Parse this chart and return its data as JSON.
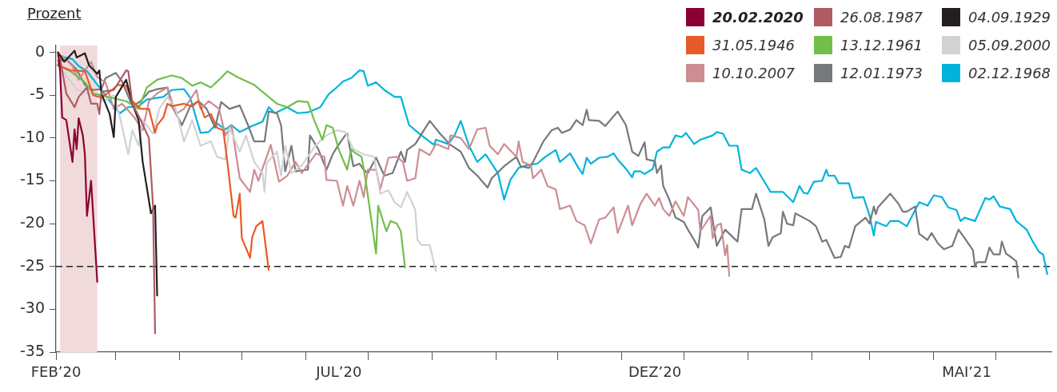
{
  "chart_data": {
    "type": "line",
    "ylabel": "Prozent",
    "legend": "top right",
    "grid": false,
    "marker": "none",
    "xlim": [
      "2020-02-15",
      "2021-06-11"
    ],
    "xticks": [
      {
        "value": "2020-02-15",
        "label": "FEB’20"
      },
      {
        "value": "2020-03-15",
        "label": null
      },
      {
        "value": "2020-04-15",
        "label": null
      },
      {
        "value": "2020-05-15",
        "label": null
      },
      {
        "value": "2020-06-15",
        "label": null
      },
      {
        "value": "2020-07-01",
        "label": "JUL’20"
      },
      {
        "value": "2020-07-15",
        "label": null
      },
      {
        "value": "2020-08-15",
        "label": null
      },
      {
        "value": "2020-09-15",
        "label": null
      },
      {
        "value": "2020-10-15",
        "label": null
      },
      {
        "value": "2020-11-15",
        "label": null
      },
      {
        "value": "2020-12-01",
        "label": "DEZ’20"
      },
      {
        "value": "2020-12-15",
        "label": null
      },
      {
        "value": "2021-01-15",
        "label": null
      },
      {
        "value": "2021-02-15",
        "label": null
      },
      {
        "value": "2021-03-15",
        "label": null
      },
      {
        "value": "2021-04-15",
        "label": null
      },
      {
        "value": "2021-05-01",
        "label": "MAI’21"
      },
      {
        "value": "2021-05-15",
        "label": null
      }
    ],
    "ylim": [
      -35,
      0.8
    ],
    "yticks": [
      0,
      -5,
      -10,
      -15,
      -20,
      -25,
      -30,
      -35
    ],
    "ref_lines": [
      {
        "axis": "y",
        "value": -25,
        "color": "#222222",
        "line_style": "dashed"
      }
    ],
    "bands": [
      {
        "axis": "x",
        "from": "2020-02-17",
        "to": "2020-03-06",
        "color": "#f0dada"
      }
    ],
    "series": [
      {
        "name": "20.02.2020",
        "color": "#8b0033",
        "x": [
          "2020-02-16",
          "2020-02-17",
          "2020-02-18",
          "2020-02-20",
          "2020-02-23",
          "2020-02-24",
          "2020-02-25",
          "2020-02-26",
          "2020-02-28",
          "2020-02-29",
          "2020-03-01",
          "2020-03-03",
          "2020-03-06"
        ],
        "values": [
          0,
          -2.2,
          -7.6,
          -7.9,
          -12.8,
          -9.0,
          -11.3,
          -7.7,
          -9.7,
          -11.9,
          -19.1,
          -15.0,
          -26.8
        ]
      },
      {
        "name": "26.08.1987",
        "color": "#b05a62",
        "x": [
          "2020-02-16",
          "2020-02-17",
          "2020-02-20",
          "2020-02-24",
          "2020-02-26",
          "2020-03-01",
          "2020-03-03",
          "2020-03-06",
          "2020-03-07",
          "2020-03-08",
          "2020-03-14",
          "2020-03-20",
          "2020-03-21",
          "2020-03-23",
          "2020-03-27",
          "2020-03-31",
          "2020-04-02",
          "2020-04-03"
        ],
        "values": [
          -1.5,
          -0.8,
          -4.8,
          -6.4,
          -5.2,
          -4.1,
          -6.0,
          -6.0,
          -7.2,
          -4.6,
          -4.4,
          -2.1,
          -2.2,
          -6.0,
          -7.9,
          -10.0,
          -17.9,
          -32.8
        ]
      },
      {
        "name": "04.09.1929",
        "color": "#231f20",
        "x": [
          "2020-02-16",
          "2020-02-19",
          "2020-02-24",
          "2020-02-25",
          "2020-02-29",
          "2020-03-02",
          "2020-03-06",
          "2020-03-07",
          "2020-03-08",
          "2020-03-12",
          "2020-03-14",
          "2020-03-15",
          "2020-03-20",
          "2020-03-23",
          "2020-03-26",
          "2020-03-28",
          "2020-04-01",
          "2020-04-03",
          "2020-04-04"
        ],
        "values": [
          0,
          -1.1,
          0.2,
          -0.6,
          -0.1,
          -1.5,
          -2.5,
          -2.1,
          -4.8,
          -7.2,
          -9.9,
          -5.2,
          -3.2,
          -6.0,
          -7.9,
          -12.8,
          -18.8,
          -17.9,
          -28.4
        ]
      },
      {
        "name": "31.05.1946",
        "color": "#e85a27",
        "x": [
          "2020-02-16",
          "2020-02-22",
          "2020-02-29",
          "2020-03-04",
          "2020-03-08",
          "2020-03-13",
          "2020-03-16",
          "2020-03-20",
          "2020-03-23",
          "2020-03-27",
          "2020-03-31",
          "2020-04-03",
          "2020-04-04",
          "2020-04-07",
          "2020-04-09",
          "2020-04-11",
          "2020-04-17",
          "2020-04-21",
          "2020-04-24",
          "2020-04-27",
          "2020-04-30",
          "2020-05-03",
          "2020-05-06",
          "2020-05-08",
          "2020-05-11",
          "2020-05-12",
          "2020-05-14",
          "2020-05-15",
          "2020-05-19",
          "2020-05-20",
          "2020-05-22",
          "2020-05-25",
          "2020-05-28"
        ],
        "values": [
          -1.5,
          -2.1,
          -2.2,
          -5.0,
          -5.3,
          -4.4,
          -3.8,
          -3.9,
          -5.7,
          -6.6,
          -6.6,
          -9.4,
          -8.5,
          -7.6,
          -6.0,
          -6.3,
          -6.0,
          -6.3,
          -5.7,
          -7.6,
          -7.2,
          -8.8,
          -9.1,
          -12.8,
          -19.1,
          -19.3,
          -16.5,
          -21.7,
          -24.0,
          -21.6,
          -20.3,
          -19.7,
          -25.4
        ]
      },
      {
        "name": "13.12.1961",
        "color": "#72be4b",
        "x": [
          "2020-02-16",
          "2020-02-22",
          "2020-02-29",
          "2020-03-04",
          "2020-03-20",
          "2020-03-26",
          "2020-03-30",
          "2020-04-04",
          "2020-04-11",
          "2020-04-16",
          "2020-04-21",
          "2020-04-25",
          "2020-04-30",
          "2020-05-04",
          "2020-05-08",
          "2020-05-13",
          "2020-05-21",
          "2020-05-26",
          "2020-05-28",
          "2020-06-01",
          "2020-06-06",
          "2020-06-11",
          "2020-06-16",
          "2020-06-19",
          "2020-06-23",
          "2020-06-25",
          "2020-06-28",
          "2020-07-01",
          "2020-07-05",
          "2020-07-07",
          "2020-07-08",
          "2020-07-12",
          "2020-07-14",
          "2020-07-19",
          "2020-07-20",
          "2020-07-24",
          "2020-07-26",
          "2020-07-29",
          "2020-07-31",
          "2020-08-02"
        ],
        "values": [
          -1.5,
          -2.2,
          -3.5,
          -4.8,
          -5.7,
          -6.6,
          -4.1,
          -3.2,
          -2.7,
          -3.0,
          -3.9,
          -3.5,
          -4.1,
          -3.2,
          -2.2,
          -2.9,
          -3.8,
          -4.8,
          -5.2,
          -6.0,
          -6.4,
          -5.7,
          -5.8,
          -7.9,
          -10.2,
          -8.5,
          -8.8,
          -11.4,
          -13.7,
          -11.3,
          -11.6,
          -12.2,
          -15.0,
          -23.5,
          -17.9,
          -20.9,
          -19.7,
          -20.0,
          -20.9,
          -25.1
        ]
      },
      {
        "name": "05.09.2000",
        "color": "#d1d2d4",
        "x": [
          "2020-02-16",
          "2020-02-25",
          "2020-03-01",
          "2020-03-06",
          "2020-03-09",
          "2020-03-14",
          "2020-03-17",
          "2020-03-21",
          "2020-03-23",
          "2020-03-26",
          "2020-03-28",
          "2020-04-02",
          "2020-04-05",
          "2020-04-09",
          "2020-04-13",
          "2020-04-17",
          "2020-04-21",
          "2020-04-25",
          "2020-04-30",
          "2020-05-03",
          "2020-05-07",
          "2020-05-09",
          "2020-05-14",
          "2020-05-17",
          "2020-05-21",
          "2020-05-25",
          "2020-05-26",
          "2020-05-27",
          "2020-06-01",
          "2020-06-03",
          "2020-06-05",
          "2020-06-08",
          "2020-06-13",
          "2020-06-20",
          "2020-06-25",
          "2020-06-30",
          "2020-07-04",
          "2020-07-08",
          "2020-07-13",
          "2020-07-18",
          "2020-07-21",
          "2020-07-25",
          "2020-07-28",
          "2020-07-31",
          "2020-08-03",
          "2020-08-07",
          "2020-08-08",
          "2020-08-10",
          "2020-08-14",
          "2020-08-17"
        ],
        "values": [
          -1.5,
          -4.3,
          -4.8,
          -4.8,
          -5.7,
          -5.0,
          -7.6,
          -11.9,
          -9.1,
          -10.9,
          -7.9,
          -9.5,
          -6.6,
          -5.2,
          -6.6,
          -10.4,
          -7.9,
          -10.9,
          -10.4,
          -12.2,
          -12.5,
          -8.8,
          -11.6,
          -9.7,
          -12.8,
          -14.1,
          -16.3,
          -12.9,
          -11.6,
          -14.4,
          -10.9,
          -14.1,
          -13.2,
          -10.8,
          -9.7,
          -9.1,
          -9.3,
          -11.3,
          -11.9,
          -12.2,
          -16.5,
          -16.1,
          -17.5,
          -18.1,
          -16.3,
          -18.4,
          -21.9,
          -22.5,
          -22.5,
          -25.6
        ]
      },
      {
        "name": "10.10.2007",
        "color": "#cc8e92",
        "x": [
          "2020-02-16",
          "2020-02-18",
          "2020-02-23",
          "2020-02-26",
          "2020-03-03",
          "2020-03-06",
          "2020-03-10",
          "2020-03-14",
          "2020-03-18",
          "2020-03-24",
          "2020-03-28",
          "2020-03-31",
          "2020-04-04",
          "2020-04-09",
          "2020-04-13",
          "2020-04-17",
          "2020-04-23",
          "2020-04-25",
          "2020-04-29",
          "2020-05-04",
          "2020-05-07",
          "2020-05-10",
          "2020-05-14",
          "2020-05-19",
          "2020-05-21",
          "2020-05-23",
          "2020-05-29",
          "2020-06-02",
          "2020-06-06",
          "2020-06-10",
          "2020-06-13",
          "2020-06-20",
          "2020-06-24",
          "2020-06-25",
          "2020-06-30",
          "2020-07-03",
          "2020-07-05",
          "2020-07-08",
          "2020-07-11",
          "2020-07-13",
          "2020-07-15",
          "2020-07-19",
          "2020-07-21",
          "2020-07-25",
          "2020-07-29",
          "2020-08-01",
          "2020-08-03",
          "2020-08-07",
          "2020-08-09",
          "2020-08-14",
          "2020-08-17",
          "2020-08-23",
          "2020-08-24",
          "2020-08-29",
          "2020-09-02",
          "2020-09-06",
          "2020-09-10",
          "2020-09-12",
          "2020-09-16",
          "2020-09-19",
          "2020-09-25",
          "2020-09-26",
          "2020-09-28",
          "2020-10-02",
          "2020-10-03",
          "2020-10-07",
          "2020-10-10",
          "2020-10-14",
          "2020-10-16",
          "2020-10-21",
          "2020-10-24",
          "2020-10-28",
          "2020-10-31",
          "2020-11-04",
          "2020-11-07",
          "2020-11-11",
          "2020-11-13",
          "2020-11-18",
          "2020-11-20",
          "2020-11-24",
          "2020-11-27",
          "2020-12-01",
          "2020-12-03",
          "2020-12-05",
          "2020-12-08",
          "2020-12-11",
          "2020-12-15",
          "2020-12-17",
          "2020-12-22",
          "2020-12-23",
          "2020-12-28",
          "2020-12-29",
          "2020-12-31",
          "2021-01-02",
          "2021-01-04",
          "2021-01-05",
          "2021-01-06"
        ],
        "values": [
          -1.0,
          -0.4,
          -1.6,
          -3.2,
          -1.1,
          -2.9,
          -3.5,
          -6.6,
          -6.0,
          -7.6,
          -9.1,
          -5.7,
          -4.8,
          -4.1,
          -7.2,
          -6.6,
          -4.4,
          -6.6,
          -5.7,
          -6.6,
          -9.7,
          -8.5,
          -14.7,
          -16.3,
          -13.7,
          -15.0,
          -10.8,
          -15.1,
          -14.4,
          -12.8,
          -14.1,
          -11.8,
          -12.2,
          -14.9,
          -15.0,
          -17.9,
          -15.6,
          -17.9,
          -15.0,
          -16.9,
          -13.7,
          -13.7,
          -16.0,
          -12.3,
          -12.2,
          -12.8,
          -15.0,
          -14.7,
          -11.3,
          -12.0,
          -10.7,
          -11.3,
          -9.7,
          -10.0,
          -11.3,
          -9.0,
          -8.8,
          -10.9,
          -11.9,
          -10.7,
          -12.2,
          -10.4,
          -12.8,
          -13.2,
          -14.7,
          -13.7,
          -15.6,
          -16.0,
          -18.3,
          -17.9,
          -19.7,
          -20.2,
          -22.3,
          -19.5,
          -19.3,
          -18.1,
          -21.1,
          -17.9,
          -20.2,
          -17.7,
          -16.5,
          -17.9,
          -17.0,
          -18.3,
          -19.1,
          -17.4,
          -19.1,
          -16.9,
          -18.4,
          -20.9,
          -19.1,
          -21.7,
          -20.2,
          -20.0,
          -23.7,
          -22.5,
          -26.1
        ]
      },
      {
        "name": "12.01.1973",
        "color": "#77787b",
        "x": [
          "2020-02-16",
          "2020-02-20",
          "2020-02-25",
          "2020-02-29",
          "2020-03-04",
          "2020-03-08",
          "2020-03-10",
          "2020-03-15",
          "2020-03-18",
          "2020-03-23",
          "2020-03-27",
          "2020-03-31",
          "2020-04-04",
          "2020-04-09",
          "2020-04-11",
          "2020-04-16",
          "2020-04-20",
          "2020-04-24",
          "2020-04-28",
          "2020-05-02",
          "2020-05-05",
          "2020-05-09",
          "2020-05-14",
          "2020-05-18",
          "2020-05-21",
          "2020-05-26",
          "2020-05-28",
          "2020-06-01",
          "2020-06-03",
          "2020-06-05",
          "2020-06-08",
          "2020-06-10",
          "2020-06-16",
          "2020-06-17",
          "2020-06-21",
          "2020-06-25",
          "2020-06-28",
          "2020-06-30",
          "2020-07-04",
          "2020-07-05",
          "2020-07-08",
          "2020-07-11",
          "2020-07-13",
          "2020-07-15",
          "2020-07-19",
          "2020-07-23",
          "2020-07-27",
          "2020-07-31",
          "2020-08-02",
          "2020-08-03",
          "2020-08-07",
          "2020-08-14",
          "2020-08-19",
          "2020-08-24",
          "2020-08-29",
          "2020-09-02",
          "2020-09-06",
          "2020-09-11",
          "2020-09-13",
          "2020-09-19",
          "2020-09-25",
          "2020-09-27",
          "2020-10-01",
          "2020-10-03",
          "2020-10-08",
          "2020-10-12",
          "2020-10-15",
          "2020-10-17",
          "2020-10-21",
          "2020-10-24",
          "2020-10-27",
          "2020-10-29",
          "2020-10-30",
          "2020-11-04",
          "2020-11-07",
          "2020-11-13",
          "2020-11-17",
          "2020-11-20",
          "2020-11-23",
          "2020-11-26",
          "2020-11-27",
          "2020-12-01",
          "2020-12-02",
          "2020-12-04",
          "2020-12-05",
          "2020-12-08",
          "2020-12-11",
          "2020-12-15",
          "2020-12-17",
          "2020-12-20",
          "2020-12-22",
          "2020-12-24",
          "2020-12-28",
          "2020-12-31",
          "2021-01-04",
          "2021-01-10",
          "2021-01-12",
          "2021-01-17",
          "2021-01-19",
          "2021-01-23",
          "2021-01-25",
          "2021-01-27",
          "2021-01-31",
          "2021-02-01",
          "2021-02-03",
          "2021-02-06",
          "2021-02-07",
          "2021-02-14",
          "2021-02-17",
          "2021-02-20",
          "2021-02-22",
          "2021-02-26",
          "2021-03-01",
          "2021-03-03",
          "2021-03-05",
          "2021-03-08",
          "2021-03-13",
          "2021-03-15",
          "2021-03-17",
          "2021-03-18",
          "2021-03-19",
          "2021-03-25",
          "2021-03-29",
          "2021-03-31",
          "2021-04-02",
          "2021-04-06",
          "2021-04-08",
          "2021-04-12",
          "2021-04-14",
          "2021-04-17",
          "2021-04-20",
          "2021-04-24",
          "2021-04-27",
          "2021-04-30",
          "2021-05-04",
          "2021-05-05",
          "2021-05-06",
          "2021-05-10",
          "2021-05-12",
          "2021-05-14",
          "2021-05-17",
          "2021-05-18",
          "2021-05-20",
          "2021-05-23",
          "2021-05-25",
          "2021-05-26"
        ],
        "values": [
          -1.0,
          -0.8,
          -2.0,
          -3.8,
          -4.4,
          -4.3,
          -3.0,
          -2.4,
          -3.4,
          -6.3,
          -5.7,
          -4.6,
          -4.3,
          -4.1,
          -6.2,
          -8.5,
          -6.3,
          -5.7,
          -6.6,
          -8.8,
          -5.8,
          -6.6,
          -6.2,
          -8.5,
          -10.4,
          -10.4,
          -6.9,
          -7.1,
          -8.5,
          -13.9,
          -10.9,
          -13.9,
          -13.7,
          -9.7,
          -11.3,
          -13.7,
          -11.9,
          -11.1,
          -9.7,
          -9.5,
          -13.3,
          -13.0,
          -13.7,
          -14.1,
          -12.3,
          -14.4,
          -14.1,
          -11.6,
          -12.8,
          -11.4,
          -10.7,
          -8.0,
          -9.5,
          -10.8,
          -11.6,
          -13.5,
          -14.4,
          -15.8,
          -14.7,
          -13.3,
          -12.2,
          -13.3,
          -13.5,
          -12.8,
          -10.4,
          -9.1,
          -8.8,
          -9.4,
          -9.0,
          -7.9,
          -8.5,
          -6.7,
          -7.9,
          -8.0,
          -8.6,
          -6.9,
          -8.5,
          -11.6,
          -12.1,
          -10.5,
          -12.5,
          -12.7,
          -14.1,
          -13.2,
          -15.6,
          -17.2,
          -19.3,
          -19.8,
          -20.7,
          -21.9,
          -22.8,
          -19.1,
          -18.1,
          -22.6,
          -20.7,
          -22.1,
          -18.3,
          -18.3,
          -16.5,
          -19.5,
          -22.6,
          -21.6,
          -21.1,
          -18.6,
          -20.0,
          -20.2,
          -18.8,
          -19.7,
          -20.3,
          -22.1,
          -21.9,
          -24.0,
          -23.9,
          -22.6,
          -22.8,
          -20.3,
          -19.3,
          -20.0,
          -18.0,
          -18.9,
          -18.1,
          -16.5,
          -17.7,
          -18.6,
          -18.6,
          -18.0,
          -21.2,
          -21.9,
          -21.1,
          -22.3,
          -23.0,
          -22.6,
          -20.7,
          -21.7,
          -23.1,
          -25.0,
          -24.5,
          -24.5,
          -22.8,
          -23.6,
          -23.6,
          -22.1,
          -23.5,
          -24.0,
          -24.4,
          -26.3
        ]
      },
      {
        "name": "02.12.1968",
        "color": "#00b4dc",
        "x": [
          "2020-02-16",
          "2020-02-23",
          "2020-02-26",
          "2020-03-01",
          "2020-03-08",
          "2020-03-13",
          "2020-03-17",
          "2020-03-21",
          "2020-03-26",
          "2020-03-30",
          "2020-04-07",
          "2020-04-11",
          "2020-04-17",
          "2020-04-20",
          "2020-04-25",
          "2020-04-29",
          "2020-05-03",
          "2020-05-07",
          "2020-05-10",
          "2020-05-14",
          "2020-05-20",
          "2020-05-25",
          "2020-05-28",
          "2020-05-31",
          "2020-06-06",
          "2020-06-08",
          "2020-06-11",
          "2020-06-16",
          "2020-06-22",
          "2020-06-26",
          "2020-06-29",
          "2020-07-03",
          "2020-07-07",
          "2020-07-11",
          "2020-07-13",
          "2020-07-15",
          "2020-07-19",
          "2020-07-23",
          "2020-07-28",
          "2020-07-31",
          "2020-08-04",
          "2020-08-07",
          "2020-08-10",
          "2020-08-16",
          "2020-08-17",
          "2020-08-23",
          "2020-08-26",
          "2020-08-29",
          "2020-09-02",
          "2020-09-06",
          "2020-09-10",
          "2020-09-16",
          "2020-09-19",
          "2020-09-22",
          "2020-09-26",
          "2020-09-30",
          "2020-10-05",
          "2020-10-09",
          "2020-10-14",
          "2020-10-16",
          "2020-10-21",
          "2020-10-25",
          "2020-10-27",
          "2020-10-29",
          "2020-10-31",
          "2020-11-04",
          "2020-11-08",
          "2020-11-11",
          "2020-11-13",
          "2020-11-17",
          "2020-11-20",
          "2020-11-21",
          "2020-11-24",
          "2020-11-26",
          "2020-11-30",
          "2020-12-02",
          "2020-12-05",
          "2020-12-08",
          "2020-12-11",
          "2020-12-14",
          "2020-12-16",
          "2020-12-20",
          "2020-12-23",
          "2020-12-29",
          "2020-12-31",
          "2021-01-03",
          "2021-01-06",
          "2021-01-10",
          "2021-01-12",
          "2021-01-16",
          "2021-01-19",
          "2021-01-23",
          "2021-01-26",
          "2021-02-01",
          "2021-02-06",
          "2021-02-09",
          "2021-02-11",
          "2021-02-13",
          "2021-02-16",
          "2021-02-20",
          "2021-02-22",
          "2021-02-23",
          "2021-02-26",
          "2021-02-28",
          "2021-03-05",
          "2021-03-07",
          "2021-03-12",
          "2021-03-15",
          "2021-03-17",
          "2021-03-18",
          "2021-03-23",
          "2021-03-25",
          "2021-03-29",
          "2021-04-02",
          "2021-04-08",
          "2021-04-12",
          "2021-04-15",
          "2021-04-19",
          "2021-04-22",
          "2021-04-26",
          "2021-04-28",
          "2021-04-30",
          "2021-05-05",
          "2021-05-10",
          "2021-05-12",
          "2021-05-14",
          "2021-05-17",
          "2021-05-22",
          "2021-05-25",
          "2021-05-30",
          "2021-06-02",
          "2021-06-05",
          "2021-06-07",
          "2021-06-09"
        ],
        "values": [
          -0.4,
          -0.8,
          -1.6,
          -2.2,
          -4.4,
          -6.0,
          -7.1,
          -6.4,
          -6.3,
          -5.5,
          -5.2,
          -4.4,
          -4.3,
          -5.3,
          -9.4,
          -9.3,
          -8.3,
          -9.0,
          -8.5,
          -9.3,
          -8.6,
          -8.1,
          -6.4,
          -7.1,
          -6.4,
          -6.7,
          -7.1,
          -7.0,
          -6.4,
          -4.9,
          -4.3,
          -3.4,
          -3.0,
          -2.1,
          -2.2,
          -3.9,
          -3.5,
          -4.4,
          -5.2,
          -5.2,
          -8.5,
          -9.1,
          -9.7,
          -10.8,
          -10.2,
          -10.7,
          -9.7,
          -8.0,
          -10.9,
          -12.8,
          -11.9,
          -14.1,
          -17.2,
          -14.9,
          -13.5,
          -13.2,
          -13.0,
          -12.2,
          -11.4,
          -12.8,
          -11.8,
          -13.5,
          -14.2,
          -12.3,
          -13.0,
          -12.3,
          -12.2,
          -11.8,
          -12.5,
          -13.6,
          -14.6,
          -13.9,
          -13.9,
          -14.2,
          -13.6,
          -11.6,
          -11.1,
          -11.1,
          -9.7,
          -9.9,
          -9.4,
          -10.7,
          -10.2,
          -9.7,
          -9.3,
          -9.5,
          -10.9,
          -10.9,
          -13.7,
          -14.1,
          -13.5,
          -15.1,
          -16.3,
          -16.3,
          -17.5,
          -15.6,
          -16.4,
          -16.5,
          -15.1,
          -15.0,
          -13.7,
          -14.4,
          -14.4,
          -15.3,
          -15.3,
          -17.0,
          -16.9,
          -19.1,
          -21.4,
          -19.8,
          -20.3,
          -19.7,
          -19.7,
          -20.3,
          -17.5,
          -17.9,
          -16.7,
          -16.9,
          -18.1,
          -18.4,
          -19.7,
          -19.3,
          -19.7,
          -17.0,
          -17.2,
          -16.8,
          -18.0,
          -18.3,
          -19.7,
          -20.7,
          -22.1,
          -23.3,
          -23.6,
          -25.9
        ]
      }
    ]
  }
}
